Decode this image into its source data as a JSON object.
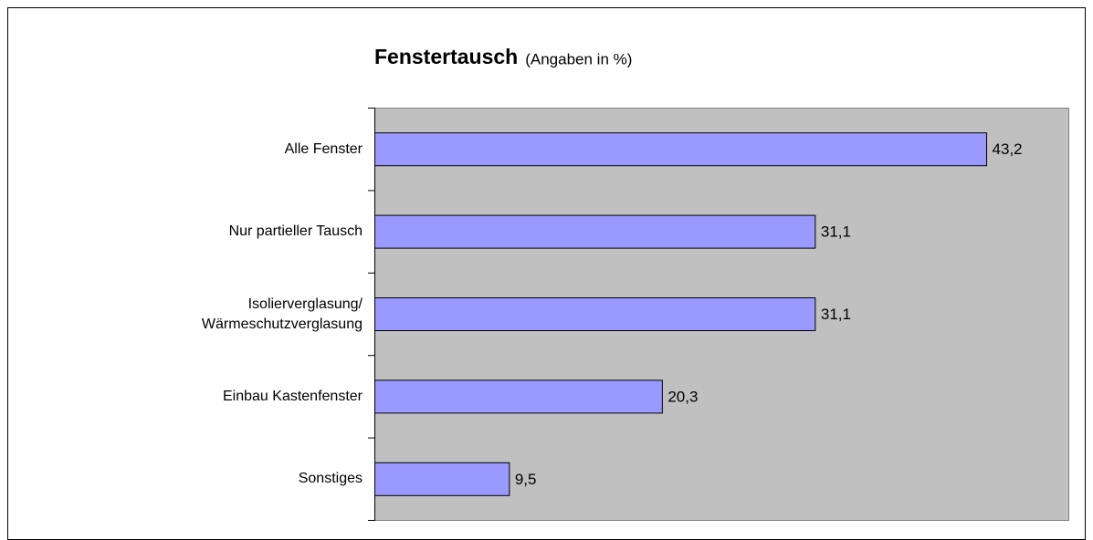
{
  "chart_data": {
    "type": "hbar",
    "title": "Fenstertausch",
    "subtitle": "(Angaben in %)",
    "categories": [
      "Alle Fenster",
      "Nur partieller Tausch",
      "Isolierverglasung/\nWärmeschutzverglasung",
      "Einbau Kastenfenster",
      "Sonstiges"
    ],
    "values": [
      43.2,
      31.1,
      31.1,
      20.3,
      9.5
    ],
    "value_labels": [
      "43,2",
      "31,1",
      "31,1",
      "20,3",
      "9,5"
    ],
    "color": "#9999ff",
    "xlim": [
      0,
      49
    ]
  }
}
